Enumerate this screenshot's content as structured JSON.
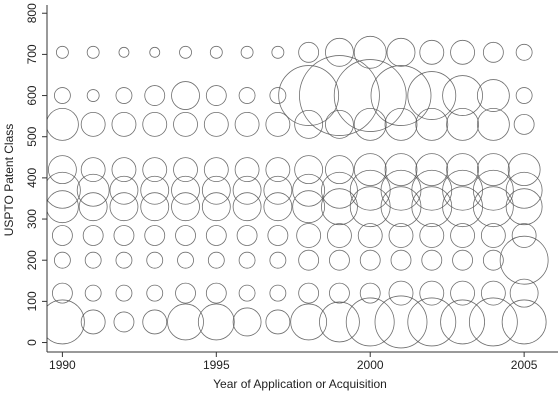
{
  "chart_data": {
    "type": "bubble",
    "xlabel": "Year of Application or Acquisition",
    "ylabel": "USPTO Patent Class",
    "xlim": [
      1989.5,
      2006.1
    ],
    "xticks": [
      1990,
      1995,
      2000,
      2005
    ],
    "ylim": [
      -23,
      820
    ],
    "yticks": [
      0,
      100,
      200,
      300,
      400,
      500,
      600,
      700,
      800
    ],
    "color": "#555555",
    "classes": [
      50,
      120,
      200,
      260,
      330,
      370,
      420,
      530,
      600,
      705
    ],
    "series": [
      {
        "year": 1990,
        "sizes": [
          22,
          10,
          8,
          10,
          16,
          18,
          14,
          16,
          8,
          6
        ]
      },
      {
        "year": 1991,
        "sizes": [
          12,
          8,
          8,
          10,
          14,
          16,
          12,
          12,
          6,
          6
        ]
      },
      {
        "year": 1992,
        "sizes": [
          10,
          8,
          8,
          10,
          14,
          14,
          12,
          12,
          8,
          5
        ]
      },
      {
        "year": 1993,
        "sizes": [
          12,
          8,
          8,
          10,
          14,
          14,
          12,
          12,
          10,
          5
        ]
      },
      {
        "year": 1994,
        "sizes": [
          18,
          10,
          8,
          10,
          14,
          14,
          12,
          12,
          14,
          6
        ]
      },
      {
        "year": 1995,
        "sizes": [
          18,
          10,
          8,
          10,
          14,
          14,
          12,
          12,
          10,
          6
        ]
      },
      {
        "year": 1996,
        "sizes": [
          14,
          8,
          8,
          10,
          14,
          14,
          12,
          12,
          8,
          6
        ]
      },
      {
        "year": 1997,
        "sizes": [
          12,
          8,
          8,
          10,
          14,
          14,
          12,
          12,
          8,
          6
        ]
      },
      {
        "year": 1998,
        "sizes": [
          18,
          10,
          10,
          12,
          16,
          16,
          14,
          14,
          30,
          10
        ]
      },
      {
        "year": 1999,
        "sizes": [
          20,
          10,
          10,
          12,
          18,
          18,
          14,
          14,
          40,
          14
        ]
      },
      {
        "year": 2000,
        "sizes": [
          24,
          10,
          10,
          12,
          20,
          20,
          16,
          16,
          36,
          16
        ]
      },
      {
        "year": 2001,
        "sizes": [
          26,
          12,
          10,
          12,
          20,
          20,
          16,
          16,
          30,
          14
        ]
      },
      {
        "year": 2002,
        "sizes": [
          24,
          12,
          10,
          12,
          20,
          20,
          16,
          16,
          24,
          12
        ]
      },
      {
        "year": 2003,
        "sizes": [
          22,
          12,
          10,
          12,
          20,
          20,
          16,
          16,
          20,
          12
        ]
      },
      {
        "year": 2004,
        "sizes": [
          24,
          12,
          10,
          12,
          20,
          20,
          16,
          16,
          16,
          10
        ]
      },
      {
        "year": 2005,
        "sizes": [
          22,
          14,
          24,
          12,
          18,
          18,
          16,
          10,
          8,
          8
        ]
      }
    ]
  }
}
